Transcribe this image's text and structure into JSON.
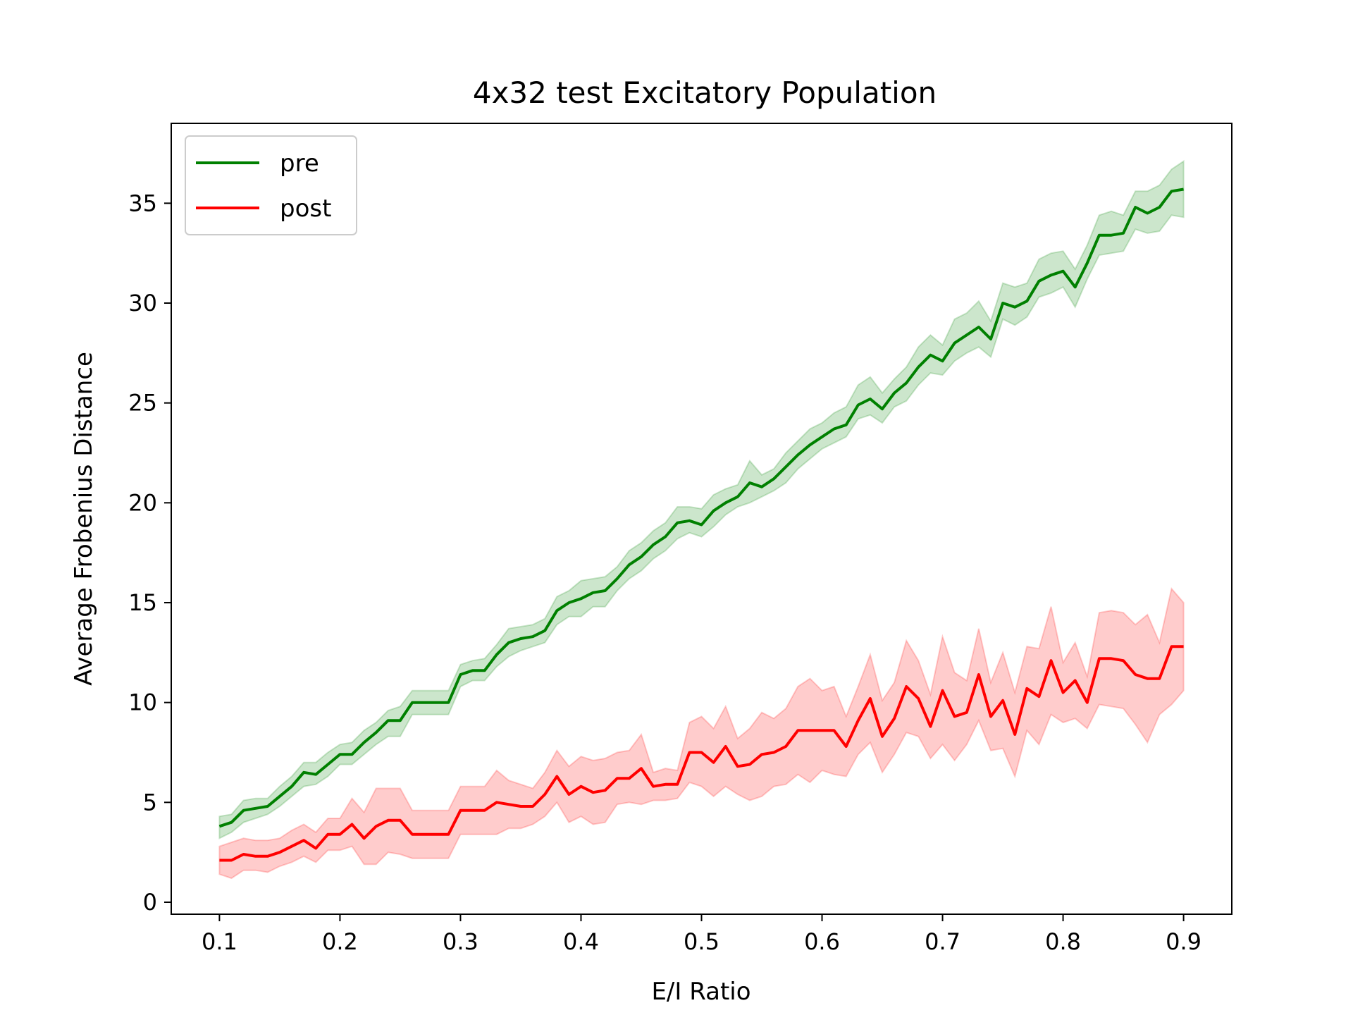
{
  "chart_data": {
    "type": "line",
    "title": "4x32 test Excitatory Population",
    "xlabel": "E/I Ratio",
    "ylabel": "Average Frobenius Distance",
    "xlim": [
      0.06,
      0.94
    ],
    "ylim": [
      -0.6,
      39
    ],
    "xticks": [
      0.1,
      0.2,
      0.3,
      0.4,
      0.5,
      0.6,
      0.7,
      0.8,
      0.9
    ],
    "xtick_labels": [
      "0.1",
      "0.2",
      "0.3",
      "0.4",
      "0.5",
      "0.6",
      "0.7",
      "0.8",
      "0.9"
    ],
    "yticks": [
      0,
      5,
      10,
      15,
      20,
      25,
      30,
      35
    ],
    "ytick_labels": [
      "0",
      "5",
      "10",
      "15",
      "20",
      "25",
      "30",
      "35"
    ],
    "grid": false,
    "legend_position": "top-left",
    "x": [
      0.1,
      0.11,
      0.12,
      0.13,
      0.14,
      0.15,
      0.16,
      0.17,
      0.18,
      0.19,
      0.2,
      0.21,
      0.22,
      0.23,
      0.24,
      0.25,
      0.26,
      0.27,
      0.28,
      0.29,
      0.3,
      0.31,
      0.32,
      0.33,
      0.34,
      0.35,
      0.36,
      0.37,
      0.38,
      0.39,
      0.4,
      0.41,
      0.42,
      0.43,
      0.44,
      0.45,
      0.46,
      0.47,
      0.48,
      0.49,
      0.5,
      0.51,
      0.52,
      0.53,
      0.54,
      0.55,
      0.56,
      0.57,
      0.58,
      0.59,
      0.6,
      0.61,
      0.62,
      0.63,
      0.64,
      0.65,
      0.66,
      0.67,
      0.68,
      0.69,
      0.7,
      0.71,
      0.72,
      0.73,
      0.74,
      0.75,
      0.76,
      0.77,
      0.78,
      0.79,
      0.8,
      0.81,
      0.82,
      0.83,
      0.84,
      0.85,
      0.86,
      0.87,
      0.88,
      0.89,
      0.9
    ],
    "series": [
      {
        "name": "pre",
        "color": "#008000",
        "values": [
          3.8,
          4.0,
          4.6,
          4.7,
          4.8,
          5.3,
          5.8,
          6.5,
          6.4,
          6.9,
          7.4,
          7.4,
          8.0,
          8.5,
          9.1,
          9.1,
          10.0,
          10.0,
          10.0,
          10.0,
          11.4,
          11.6,
          11.6,
          12.4,
          13.0,
          13.2,
          13.3,
          13.6,
          14.6,
          15.0,
          15.2,
          15.5,
          15.6,
          16.2,
          16.9,
          17.3,
          17.9,
          18.3,
          19.0,
          19.1,
          18.9,
          19.6,
          20.0,
          20.3,
          21.0,
          20.8,
          21.2,
          21.8,
          22.4,
          22.9,
          23.3,
          23.7,
          23.9,
          24.9,
          25.2,
          24.7,
          25.5,
          26.0,
          26.8,
          27.4,
          27.1,
          28.0,
          28.4,
          28.8,
          28.2,
          30.0,
          29.8,
          30.1,
          31.1,
          31.4,
          31.6,
          30.8,
          32.0,
          33.4,
          33.4,
          33.5,
          34.8,
          34.5,
          34.8,
          35.6,
          35.7
        ],
        "lower": [
          3.2,
          3.5,
          4.0,
          4.2,
          4.4,
          4.8,
          5.3,
          5.8,
          5.9,
          6.3,
          6.9,
          6.9,
          7.4,
          7.9,
          8.3,
          8.3,
          9.4,
          9.4,
          9.4,
          9.4,
          10.8,
          11.1,
          11.1,
          11.8,
          12.3,
          12.6,
          12.8,
          13.0,
          13.9,
          14.3,
          14.3,
          14.8,
          14.8,
          15.6,
          16.2,
          16.6,
          17.2,
          17.6,
          18.2,
          18.5,
          18.3,
          18.8,
          19.4,
          19.8,
          20.0,
          20.3,
          20.6,
          21.0,
          21.7,
          22.2,
          22.7,
          23.0,
          23.3,
          24.2,
          24.4,
          24.0,
          24.8,
          25.1,
          25.9,
          26.5,
          26.4,
          27.1,
          27.5,
          27.8,
          27.3,
          29.2,
          28.9,
          29.3,
          30.3,
          30.5,
          30.8,
          29.8,
          31.2,
          32.4,
          32.5,
          32.6,
          33.7,
          33.5,
          33.6,
          34.4,
          34.3
        ],
        "upper": [
          4.3,
          4.4,
          5.1,
          5.2,
          5.2,
          5.8,
          6.3,
          7.0,
          7.0,
          7.5,
          7.9,
          8.0,
          8.6,
          9.0,
          9.6,
          9.8,
          10.6,
          10.6,
          10.6,
          10.6,
          11.9,
          12.1,
          12.2,
          12.9,
          13.7,
          13.8,
          13.9,
          14.2,
          15.3,
          15.6,
          16.1,
          16.2,
          16.3,
          16.8,
          17.6,
          18.0,
          18.6,
          19.0,
          19.8,
          19.8,
          19.7,
          20.4,
          20.7,
          20.9,
          22.1,
          21.4,
          21.7,
          22.5,
          23.1,
          23.7,
          24.0,
          24.5,
          24.8,
          25.9,
          26.3,
          25.5,
          26.2,
          26.8,
          27.8,
          28.4,
          27.9,
          29.2,
          29.5,
          30.1,
          29.1,
          31.0,
          30.8,
          31.0,
          32.2,
          32.5,
          32.6,
          31.7,
          32.9,
          34.4,
          34.6,
          34.4,
          35.6,
          35.6,
          35.9,
          36.7,
          37.1
        ]
      },
      {
        "name": "post",
        "color": "#ff0000",
        "values": [
          2.1,
          2.1,
          2.4,
          2.3,
          2.3,
          2.5,
          2.8,
          3.1,
          2.7,
          3.4,
          3.4,
          3.9,
          3.2,
          3.8,
          4.1,
          4.1,
          3.4,
          3.4,
          3.4,
          3.4,
          4.6,
          4.6,
          4.6,
          5.0,
          4.9,
          4.8,
          4.8,
          5.4,
          6.3,
          5.4,
          5.8,
          5.5,
          5.6,
          6.2,
          6.2,
          6.7,
          5.8,
          5.9,
          5.9,
          7.5,
          7.5,
          7.0,
          7.8,
          6.8,
          6.9,
          7.4,
          7.5,
          7.8,
          8.6,
          8.6,
          8.6,
          8.6,
          7.8,
          9.1,
          10.2,
          8.3,
          9.2,
          10.8,
          10.2,
          8.8,
          10.6,
          9.3,
          9.5,
          11.4,
          9.3,
          10.1,
          8.4,
          10.7,
          10.3,
          12.1,
          10.5,
          11.1,
          10.0,
          12.2,
          12.2,
          12.1,
          11.4,
          11.2,
          11.2,
          12.8,
          12.8
        ],
        "lower": [
          1.4,
          1.2,
          1.6,
          1.6,
          1.5,
          1.8,
          2.0,
          2.3,
          2.0,
          2.6,
          2.6,
          2.8,
          1.9,
          1.9,
          2.5,
          2.4,
          2.2,
          2.2,
          2.2,
          2.2,
          3.4,
          3.4,
          3.4,
          3.4,
          3.7,
          3.7,
          3.9,
          4.3,
          5.0,
          4.0,
          4.3,
          3.9,
          4.0,
          4.9,
          5.0,
          4.9,
          5.1,
          5.1,
          5.2,
          6.0,
          5.8,
          5.3,
          5.8,
          5.4,
          5.1,
          5.3,
          5.8,
          5.9,
          6.4,
          6.0,
          6.6,
          6.4,
          6.3,
          7.4,
          8.0,
          6.5,
          7.4,
          8.5,
          8.3,
          7.2,
          7.9,
          7.1,
          7.9,
          9.1,
          7.6,
          7.7,
          6.3,
          8.6,
          7.9,
          9.4,
          9.0,
          9.2,
          8.7,
          9.9,
          9.8,
          9.7,
          8.9,
          8.0,
          9.4,
          9.9,
          10.6
        ],
        "upper": [
          2.8,
          3.0,
          3.2,
          3.1,
          3.1,
          3.2,
          3.6,
          3.9,
          3.5,
          4.2,
          4.2,
          5.2,
          4.5,
          5.7,
          5.7,
          5.7,
          4.6,
          4.6,
          4.6,
          4.6,
          5.8,
          5.8,
          5.8,
          6.6,
          6.1,
          5.9,
          5.7,
          6.5,
          7.6,
          6.8,
          7.3,
          7.1,
          7.2,
          7.5,
          7.6,
          8.4,
          6.5,
          6.7,
          6.6,
          9.0,
          9.3,
          8.7,
          9.8,
          8.2,
          8.7,
          9.5,
          9.2,
          9.7,
          10.8,
          11.2,
          10.6,
          10.8,
          9.3,
          10.8,
          12.4,
          10.1,
          11.0,
          13.1,
          12.1,
          10.4,
          13.3,
          11.5,
          11.1,
          13.7,
          11.0,
          12.5,
          10.5,
          12.8,
          12.7,
          14.8,
          12.0,
          13.0,
          11.3,
          14.5,
          14.6,
          14.5,
          13.9,
          14.4,
          13.0,
          15.7,
          15.0
        ]
      }
    ]
  }
}
